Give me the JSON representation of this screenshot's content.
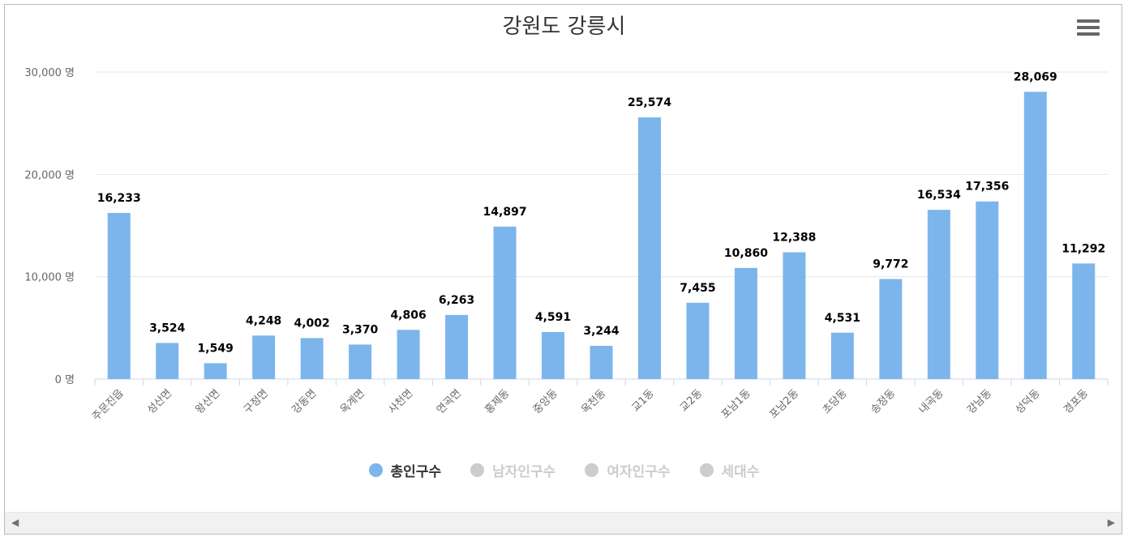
{
  "chart_data": {
    "type": "bar",
    "title": "강원도 강릉시",
    "ylim": [
      0,
      30000
    ],
    "y_ticks": [
      "0 명",
      "10,000 명",
      "20,000 명",
      "30,000 명"
    ],
    "y_tick_values": [
      0,
      10000,
      20000,
      30000
    ],
    "grid": true,
    "legend_placement": "bottom",
    "categories": [
      "주문진읍",
      "성산면",
      "왕산면",
      "구정면",
      "강동면",
      "옥계면",
      "사천면",
      "연곡면",
      "홍제동",
      "중앙동",
      "옥천동",
      "교1동",
      "교2동",
      "포남1동",
      "포남2동",
      "초당동",
      "송정동",
      "내곡동",
      "강남동",
      "성덕동",
      "경포동"
    ],
    "series": [
      {
        "name": "총인구수",
        "color": "#7cb5ec",
        "visible": true,
        "values": [
          16233,
          3524,
          1549,
          4248,
          4002,
          3370,
          4806,
          6263,
          14897,
          4591,
          3244,
          25574,
          7455,
          10860,
          12388,
          4531,
          9772,
          16534,
          17356,
          28069,
          11292
        ],
        "labels": [
          "16,233",
          "3,524",
          "1,549",
          "4,248",
          "4,002",
          "3,370",
          "4,806",
          "6,263",
          "14,897",
          "4,591",
          "3,244",
          "25,574",
          "7,455",
          "10,860",
          "12,388",
          "4,531",
          "9,772",
          "16,534",
          "17,356",
          "28,069",
          "11,292"
        ]
      },
      {
        "name": "남자인구수",
        "color": "#cccccc",
        "visible": false
      },
      {
        "name": "여자인구수",
        "color": "#cccccc",
        "visible": false
      },
      {
        "name": "세대수",
        "color": "#cccccc",
        "visible": false
      }
    ]
  },
  "menu_icon": "hamburger-menu-icon",
  "scrollbar": {
    "left_arrow": "◀",
    "right_arrow": "▶"
  }
}
